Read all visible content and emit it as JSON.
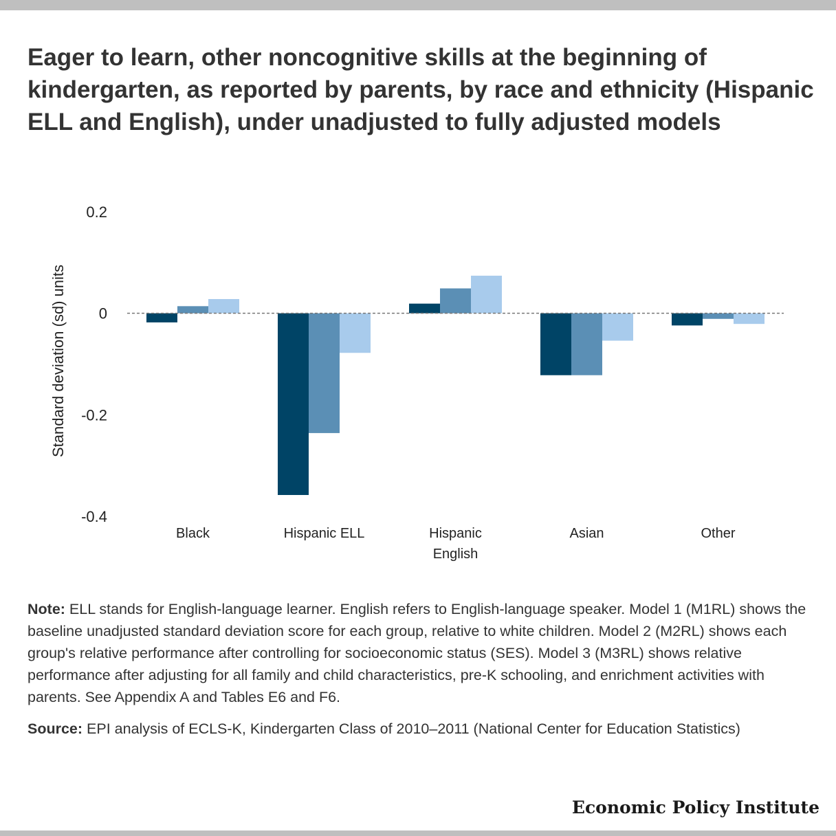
{
  "page": {
    "title": "Eager to learn, other noncognitive skills at the beginning of kindergarten, as reported by parents, by race and ethnicity (Hispanic ELL and English), under unadjusted to fully adjusted models",
    "note_label": "Note:",
    "note_text": "ELL stands for English-language learner. English refers to English-language speaker. Model 1 (M1RL) shows the baseline unadjusted standard deviation score for each group, relative to white children. Model 2 (M2RL) shows each group's relative performance after controlling for socioeconomic status (SES). Model 3 (M3RL) shows relative performance after adjusting for all family and child characteristics, pre-K schooling, and enrichment activities with parents. See Appendix A and Tables E6 and F6.",
    "source_label": "Source:",
    "source_text": "EPI analysis of ECLS-K, Kindergarten Class of 2010–2011 (National Center for Education Statistics)",
    "brand": "Economic Policy Institute"
  },
  "chart_data": {
    "type": "bar",
    "title": "Eager to learn, other noncognitive skills at the beginning of kindergarten, as reported by parents, by race and ethnicity (Hispanic ELL and English), under unadjusted to fully adjusted models",
    "xlabel": "",
    "ylabel": "Standard deviation (sd) units",
    "ylim": [
      -0.4,
      0.2
    ],
    "yticks": [
      0.2,
      0,
      -0.2,
      -0.4
    ],
    "ytick_labels": [
      "0.2",
      "0",
      "-0.2",
      "-0.4"
    ],
    "grid": false,
    "zero_line": "dashed",
    "categories": [
      [
        "Black"
      ],
      [
        "Hispanic ELL"
      ],
      [
        "Hispanic",
        "English"
      ],
      [
        "Asian"
      ],
      [
        "Other"
      ]
    ],
    "series": [
      {
        "values": [
          -0.018,
          -0.358,
          0.019,
          -0.122,
          -0.024
        ],
        "color": "#004466"
      },
      {
        "values": [
          0.014,
          -0.236,
          0.049,
          -0.122,
          -0.011
        ],
        "color": "#5b8fb5"
      },
      {
        "values": [
          0.028,
          -0.078,
          0.074,
          -0.054,
          -0.021
        ],
        "color": "#a8cbec"
      }
    ]
  }
}
